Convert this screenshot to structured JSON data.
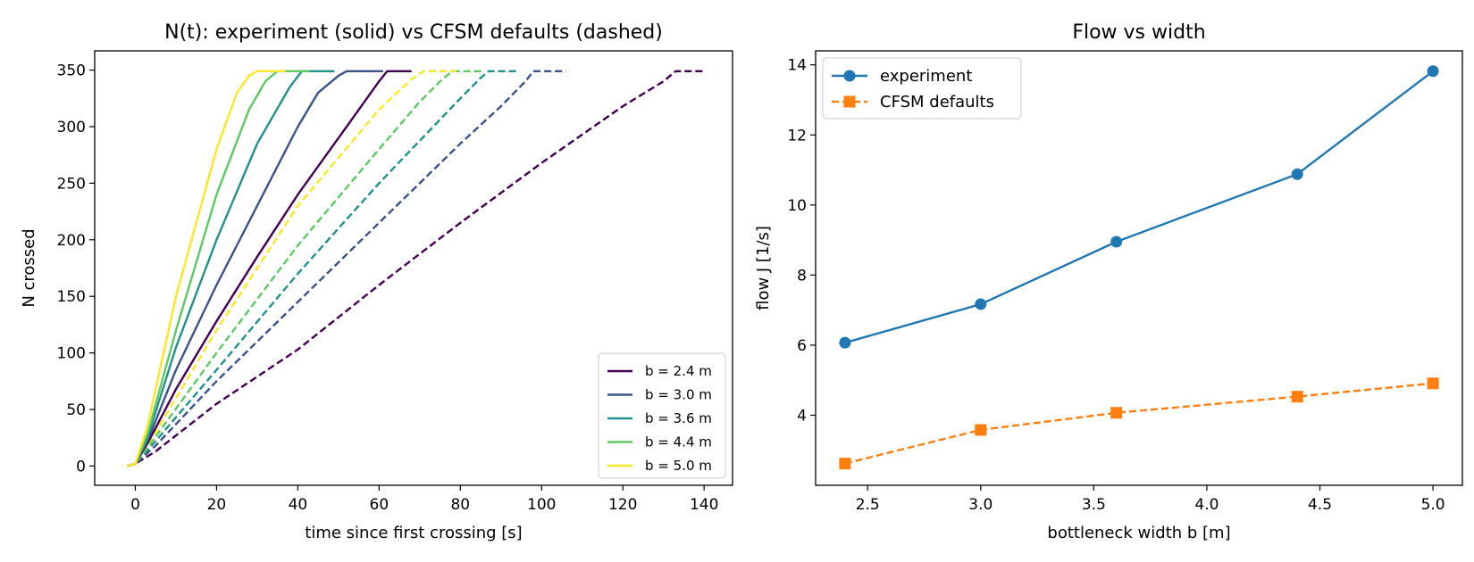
{
  "chart_data": [
    {
      "type": "line",
      "title": "N(t): experiment (solid) vs CFSM defaults (dashed)",
      "xlabel": "time since first crossing [s]",
      "ylabel": "N crossed",
      "xlim": [
        -10,
        147
      ],
      "ylim": [
        -17,
        367
      ],
      "xticks": [
        0,
        20,
        40,
        60,
        80,
        100,
        120,
        140
      ],
      "yticks": [
        0,
        50,
        100,
        150,
        200,
        250,
        300,
        350
      ],
      "grid": false,
      "legend_position": "lower-right",
      "legend_labels": [
        "b = 2.4 m",
        "b = 3.0 m",
        "b = 3.6 m",
        "b = 4.4 m",
        "b = 5.0 m"
      ],
      "series": [
        {
          "name": "b = 2.4 m",
          "style": "solid",
          "color": "#440154",
          "x": [
            -2,
            0,
            3,
            10,
            20,
            30,
            40,
            50,
            56,
            60,
            62,
            68
          ],
          "y": [
            0,
            2,
            20,
            68,
            128,
            185,
            240,
            290,
            320,
            340,
            349,
            349
          ]
        },
        {
          "name": "b = 3.0 m",
          "style": "solid",
          "color": "#3b528b",
          "x": [
            -2,
            0,
            3,
            10,
            20,
            30,
            40,
            45,
            50,
            52,
            61
          ],
          "y": [
            0,
            2,
            22,
            85,
            160,
            230,
            300,
            330,
            345,
            349,
            349
          ]
        },
        {
          "name": "b = 3.6 m",
          "style": "solid",
          "color": "#21918c",
          "x": [
            -2,
            0,
            3,
            10,
            20,
            30,
            38,
            41,
            49
          ],
          "y": [
            0,
            2,
            25,
            105,
            200,
            285,
            335,
            349,
            349
          ]
        },
        {
          "name": "b = 4.4 m",
          "style": "solid",
          "color": "#5ec962",
          "x": [
            -2,
            0,
            3,
            10,
            20,
            28,
            32,
            35,
            43
          ],
          "y": [
            0,
            2,
            28,
            120,
            240,
            315,
            340,
            349,
            349
          ]
        },
        {
          "name": "b = 5.0 m",
          "style": "solid",
          "color": "#fde725",
          "x": [
            -2,
            0,
            3,
            10,
            20,
            25,
            28,
            30,
            37
          ],
          "y": [
            0,
            2,
            35,
            150,
            280,
            330,
            345,
            349,
            349
          ]
        },
        {
          "name": "b = 2.4 m (CFSM)",
          "style": "dashed",
          "color": "#440154",
          "x": [
            -2,
            0,
            5,
            20,
            40,
            60,
            80,
            100,
            120,
            130,
            133,
            140
          ],
          "y": [
            0,
            2,
            13,
            55,
            103,
            160,
            215,
            268,
            318,
            340,
            349,
            349
          ]
        },
        {
          "name": "b = 3.0 m (CFSM)",
          "style": "dashed",
          "color": "#3b528b",
          "x": [
            -2,
            0,
            5,
            20,
            40,
            60,
            80,
            90,
            96,
            98,
            106
          ],
          "y": [
            0,
            2,
            18,
            75,
            145,
            215,
            285,
            318,
            340,
            349,
            349
          ]
        },
        {
          "name": "b = 3.6 m (CFSM)",
          "style": "dashed",
          "color": "#21918c",
          "x": [
            -2,
            0,
            5,
            20,
            40,
            60,
            80,
            85,
            87,
            94
          ],
          "y": [
            0,
            2,
            22,
            85,
            170,
            250,
            325,
            343,
            349,
            349
          ]
        },
        {
          "name": "b = 4.4 m (CFSM)",
          "style": "dashed",
          "color": "#5ec962",
          "x": [
            -2,
            0,
            5,
            20,
            40,
            60,
            70,
            75,
            78,
            86
          ],
          "y": [
            0,
            2,
            26,
            100,
            195,
            280,
            322,
            340,
            349,
            349
          ]
        },
        {
          "name": "b = 5.0 m (CFSM)",
          "style": "dashed",
          "color": "#fde725",
          "x": [
            -2,
            0,
            5,
            20,
            40,
            60,
            68,
            71,
            79
          ],
          "y": [
            0,
            2,
            30,
            120,
            230,
            315,
            342,
            349,
            349
          ]
        }
      ]
    },
    {
      "type": "line",
      "title": "Flow vs width",
      "xlabel": "bottleneck width b [m]",
      "ylabel": "flow J [1/s]",
      "xlim": [
        2.27,
        5.13
      ],
      "ylim": [
        2.0,
        14.4
      ],
      "xticks": [
        2.5,
        3.0,
        3.5,
        4.0,
        4.5,
        5.0
      ],
      "xtick_labels": [
        "2.5",
        "3.0",
        "3.5",
        "4.0",
        "4.5",
        "5.0"
      ],
      "yticks": [
        4,
        6,
        8,
        10,
        12,
        14
      ],
      "grid": false,
      "legend_position": "top-left",
      "x": [
        2.4,
        3.0,
        3.6,
        4.4,
        5.0
      ],
      "series": [
        {
          "name": "experiment",
          "style": "solid",
          "marker": "circle",
          "color": "#1f77b4",
          "values": [
            6.07,
            7.17,
            8.95,
            10.88,
            13.82
          ]
        },
        {
          "name": "CFSM defaults",
          "style": "dashed",
          "marker": "square",
          "color": "#ff7f0e",
          "values": [
            2.62,
            3.58,
            4.07,
            4.53,
            4.91
          ]
        }
      ]
    }
  ]
}
